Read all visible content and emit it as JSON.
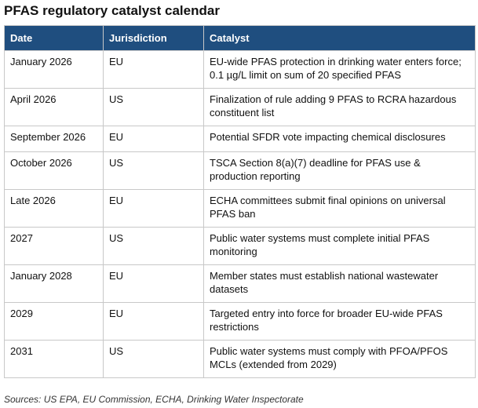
{
  "title": "PFAS regulatory catalyst calendar",
  "table": {
    "headers": [
      "Date",
      "Jurisdiction",
      "Catalyst"
    ],
    "rows": [
      {
        "date": "January 2026",
        "jurisdiction": "EU",
        "catalyst": "EU-wide PFAS protection in drinking water enters force; 0.1 µg/L limit on sum of 20 specified PFAS"
      },
      {
        "date": "April 2026",
        "jurisdiction": "US",
        "catalyst": "Finalization of rule adding 9 PFAS to RCRA hazardous constituent list"
      },
      {
        "date": "September 2026",
        "jurisdiction": "EU",
        "catalyst": "Potential SFDR vote impacting chemical disclosures"
      },
      {
        "date": "October 2026",
        "jurisdiction": "US",
        "catalyst": "TSCA Section 8(a)(7) deadline for PFAS use & production reporting"
      },
      {
        "date": "Late 2026",
        "jurisdiction": "EU",
        "catalyst": "ECHA committees submit final opinions on universal PFAS ban"
      },
      {
        "date": "2027",
        "jurisdiction": "US",
        "catalyst": "Public water systems must complete initial PFAS monitoring"
      },
      {
        "date": "January 2028",
        "jurisdiction": "EU",
        "catalyst": "Member states must establish national wastewater datasets"
      },
      {
        "date": "2029",
        "jurisdiction": "EU",
        "catalyst": "Targeted entry into force for broader EU-wide PFAS restrictions"
      },
      {
        "date": "2031",
        "jurisdiction": "US",
        "catalyst": "Public water systems must comply with PFOA/PFOS MCLs (extended from 2029)"
      }
    ]
  },
  "source": "Sources: US EPA, EU Commission, ECHA, Drinking Water Inspectorate",
  "colors": {
    "header_bg": "#1f4e7f",
    "header_text": "#ffffff",
    "border": "#c8c8c8"
  }
}
